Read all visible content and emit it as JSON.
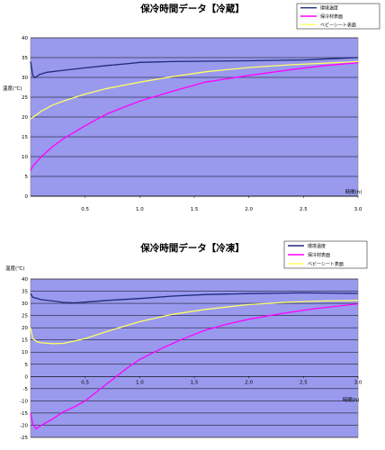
{
  "chart_data": [
    {
      "type": "line",
      "title": "保冷時間データ【冷蔵】",
      "ylabel": "温度(℃)",
      "xlabel": "時間(h)",
      "xlim": [
        0,
        3.0
      ],
      "ylim": [
        0,
        40
      ],
      "xticks": [
        "0.5",
        "1.0",
        "1.5",
        "2.0",
        "2.5",
        "3.0"
      ],
      "yticks": [
        "0",
        "5",
        "10",
        "15",
        "20",
        "25",
        "30",
        "35",
        "40"
      ],
      "grid": "horizontal",
      "legend": "top-right",
      "series": [
        {
          "name": "環境温度",
          "color": "#1f2a7a",
          "x": [
            0,
            0.02,
            0.04,
            0.08,
            0.15,
            0.3,
            0.5,
            0.7,
            0.9,
            1.0,
            1.3,
            1.6,
            2.0,
            2.5,
            3.0
          ],
          "y": [
            34,
            30.5,
            29.9,
            30.7,
            31.3,
            31.8,
            32.4,
            33.0,
            33.5,
            33.8,
            34.0,
            34.1,
            34.2,
            34.4,
            35.0
          ]
        },
        {
          "name": "保冷材表面",
          "color": "#ff00ff",
          "x": [
            0,
            0.02,
            0.05,
            0.1,
            0.2,
            0.3,
            0.5,
            0.7,
            1.0,
            1.3,
            1.6,
            2.0,
            2.4,
            2.7,
            3.0
          ],
          "y": [
            6.5,
            7.5,
            8.5,
            10,
            12.5,
            14.5,
            17.8,
            20.8,
            24.0,
            26.5,
            28.8,
            30.5,
            32.0,
            33.0,
            33.7
          ]
        },
        {
          "name": "ベビーシート表面",
          "color": "#ffff66",
          "x": [
            0,
            0.05,
            0.1,
            0.2,
            0.3,
            0.5,
            0.7,
            1.0,
            1.3,
            1.6,
            2.0,
            2.4,
            2.7,
            3.0
          ],
          "y": [
            19.5,
            20.5,
            21.5,
            23.0,
            24.0,
            25.8,
            27.2,
            28.8,
            30.2,
            31.4,
            32.5,
            33.2,
            33.6,
            34.0
          ]
        }
      ]
    },
    {
      "type": "line",
      "title": "保冷時間データ【冷凍】",
      "ylabel": "温度(℃)",
      "xlabel": "時間(h)",
      "xlim": [
        0,
        3.0
      ],
      "ylim": [
        -25,
        40
      ],
      "xticks": [
        "0.5",
        "1.0",
        "1.5",
        "2.0",
        "2.5",
        "3.0"
      ],
      "yticks": [
        "-25",
        "-20",
        "-15",
        "-10",
        "-5",
        "0",
        "5",
        "10",
        "15",
        "20",
        "25",
        "30",
        "35",
        "40"
      ],
      "grid": "horizontal",
      "legend": "top-right",
      "series": [
        {
          "name": "環境温度",
          "color": "#1f2a7a",
          "x": [
            0,
            0.02,
            0.1,
            0.2,
            0.3,
            0.4,
            0.5,
            0.7,
            1.0,
            1.3,
            1.6,
            2.0,
            2.5,
            3.0
          ],
          "y": [
            34,
            32.5,
            31.5,
            31.0,
            30.4,
            30.2,
            30.5,
            31.2,
            32.0,
            33.0,
            33.6,
            34.0,
            34.3,
            34.1
          ]
        },
        {
          "name": "保冷材表面",
          "color": "#ff00ff",
          "x": [
            0,
            0.02,
            0.05,
            0.1,
            0.2,
            0.3,
            0.4,
            0.5,
            0.6,
            0.7,
            0.8,
            0.9,
            1.0,
            1.2,
            1.4,
            1.6,
            1.8,
            2.0,
            2.3,
            2.6,
            3.0
          ],
          "y": [
            -15,
            -19.5,
            -21.5,
            -20.0,
            -17.5,
            -14.5,
            -12.5,
            -10.0,
            -6.5,
            -3.0,
            0.5,
            4.0,
            7.0,
            11.5,
            15.5,
            19.0,
            21.5,
            23.5,
            25.8,
            27.8,
            29.8
          ]
        },
        {
          "name": "ベビーシート表面",
          "color": "#ffff66",
          "x": [
            0,
            0.02,
            0.06,
            0.1,
            0.2,
            0.3,
            0.4,
            0.5,
            0.7,
            1.0,
            1.3,
            1.6,
            2.0,
            2.4,
            2.7,
            3.0
          ],
          "y": [
            20,
            15.5,
            14.2,
            13.8,
            13.5,
            13.6,
            14.5,
            15.5,
            18.5,
            22.5,
            25.5,
            27.5,
            29.5,
            30.6,
            31.0,
            31.2
          ]
        }
      ]
    }
  ]
}
